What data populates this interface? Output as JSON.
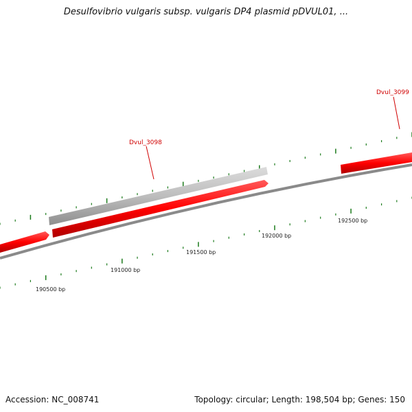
{
  "title": "Desulfovibrio vulgaris subsp. vulgaris DP4 plasmid pDVUL01, ...",
  "footer": {
    "accession": "Accession: NC_008741",
    "summary": "Topology: circular; Length: 198,504 bp; Genes: 150"
  },
  "ruler_labels": [
    "190500 bp",
    "191000 bp",
    "191500 bp",
    "192000 bp",
    "192500 bp"
  ],
  "gene_labels": [
    "Dvul_3098",
    "Dvul_3099"
  ],
  "colors": {
    "gene_forward": "#ff0000",
    "gene_grey": "#bbbbbb",
    "backbone": "#777777",
    "ticks": "#1a7a1a",
    "label": "#d00000"
  }
}
